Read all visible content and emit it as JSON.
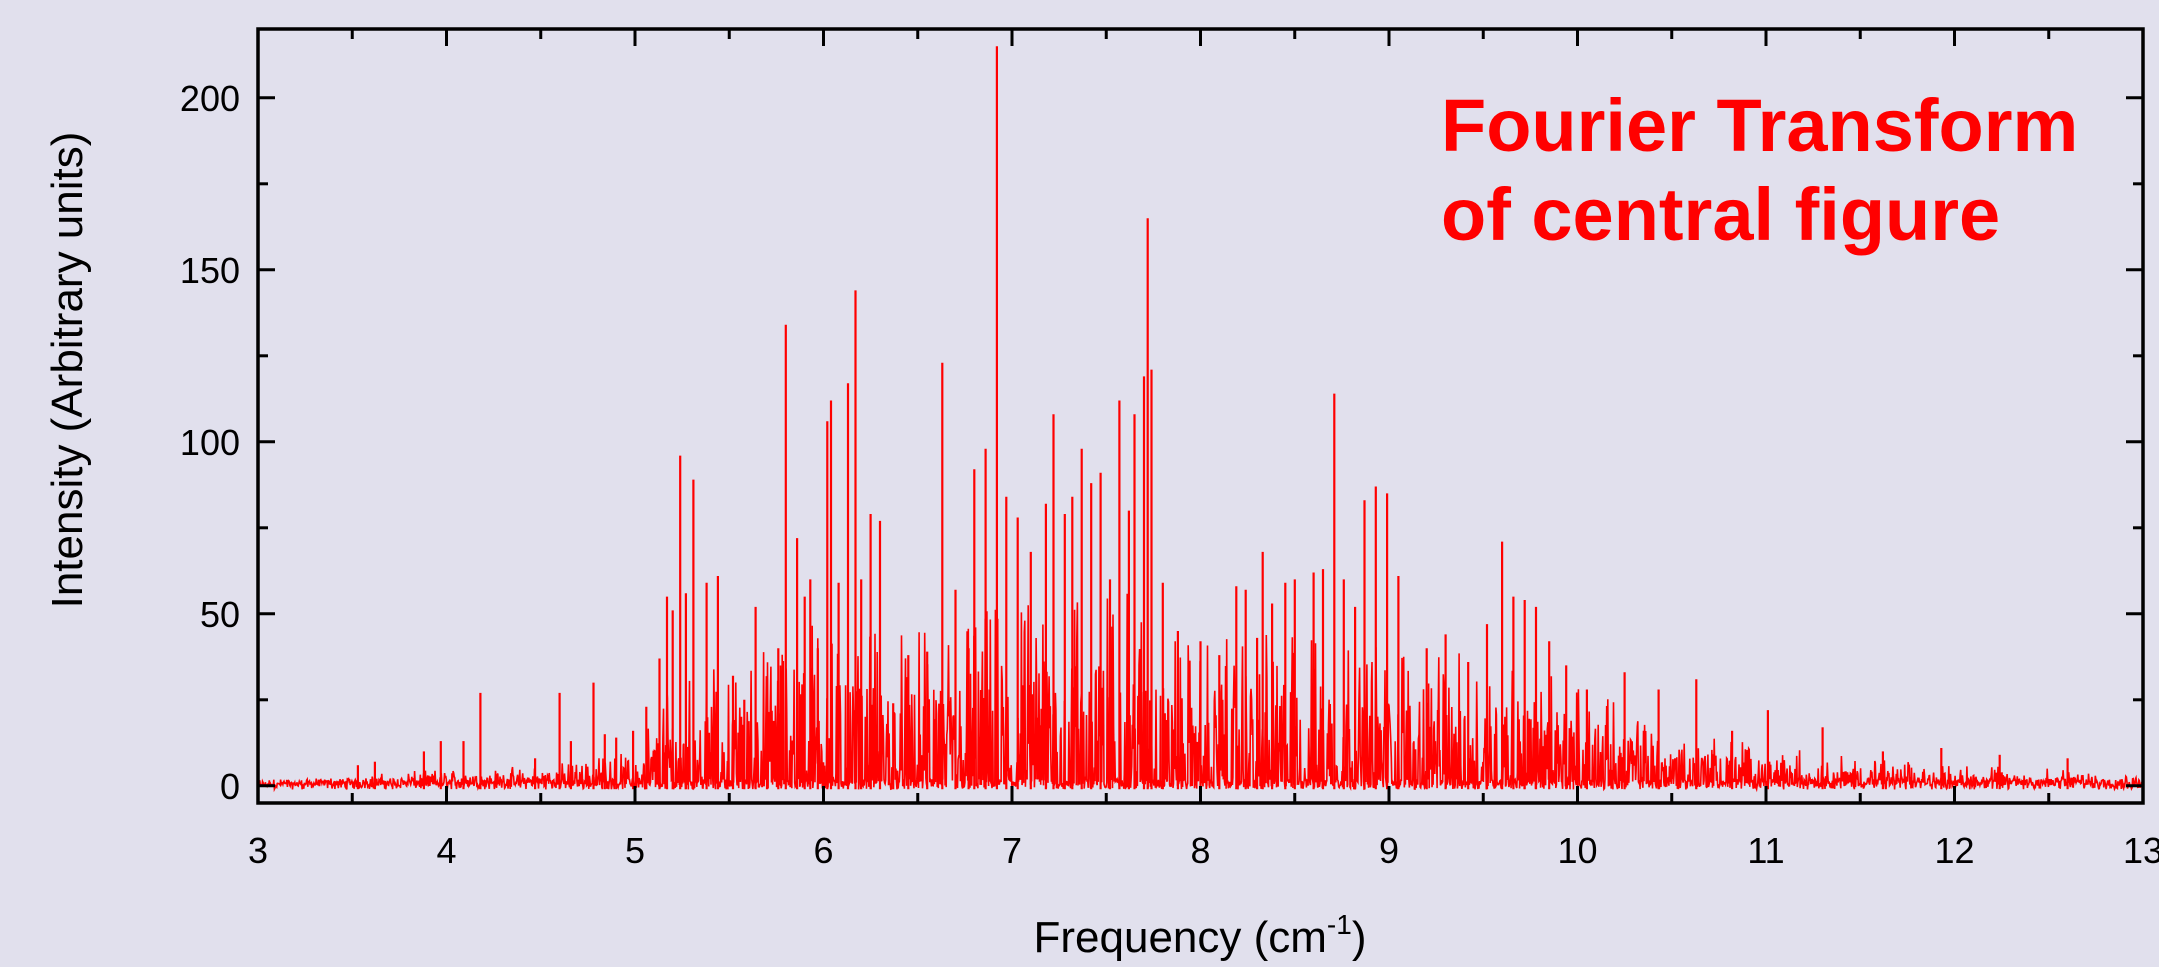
{
  "chart_data": {
    "type": "line",
    "title": "",
    "annotation": [
      "Fourier Transform",
      "of central figure"
    ],
    "xlabel": {
      "text": "Frequency (cm",
      "sup": "-1",
      "suffix": ")"
    },
    "ylabel": "Intensity (Arbitrary units)",
    "xlim": [
      3,
      13
    ],
    "ylim": [
      -5,
      220
    ],
    "xticks": [
      3,
      4,
      5,
      6,
      7,
      8,
      9,
      10,
      11,
      12,
      13
    ],
    "yticks": [
      0,
      50,
      100,
      150,
      200
    ],
    "grid": false,
    "legend": "none",
    "colors": {
      "series": "#ff0000",
      "annotation": "#ff0000",
      "axes": "#000000",
      "background": "#e1e0ed"
    },
    "series": [
      {
        "color": "#ff0000",
        "envelope": [
          [
            3.0,
            1
          ],
          [
            3.5,
            3
          ],
          [
            4.0,
            5
          ],
          [
            4.5,
            6
          ],
          [
            5.0,
            10
          ],
          [
            5.2,
            35
          ],
          [
            5.5,
            35
          ],
          [
            5.8,
            45
          ],
          [
            6.0,
            50
          ],
          [
            6.5,
            45
          ],
          [
            7.0,
            55
          ],
          [
            7.5,
            60
          ],
          [
            8.0,
            42
          ],
          [
            8.5,
            45
          ],
          [
            9.0,
            42
          ],
          [
            9.5,
            38
          ],
          [
            10.0,
            30
          ],
          [
            10.5,
            18
          ],
          [
            11.0,
            12
          ],
          [
            11.5,
            8
          ],
          [
            12.0,
            6
          ],
          [
            12.5,
            5
          ],
          [
            13.0,
            3
          ]
        ],
        "peaks": [
          [
            3.53,
            6
          ],
          [
            3.62,
            7
          ],
          [
            3.88,
            10
          ],
          [
            3.97,
            13
          ],
          [
            4.09,
            13
          ],
          [
            4.18,
            27
          ],
          [
            4.47,
            8
          ],
          [
            4.6,
            27
          ],
          [
            4.66,
            13
          ],
          [
            4.78,
            30
          ],
          [
            4.84,
            15
          ],
          [
            4.9,
            14
          ],
          [
            4.99,
            16
          ],
          [
            5.06,
            23
          ],
          [
            5.13,
            37
          ],
          [
            5.17,
            55
          ],
          [
            5.2,
            51
          ],
          [
            5.24,
            96
          ],
          [
            5.27,
            56
          ],
          [
            5.31,
            89
          ],
          [
            5.38,
            59
          ],
          [
            5.44,
            61
          ],
          [
            5.52,
            32
          ],
          [
            5.58,
            25
          ],
          [
            5.64,
            52
          ],
          [
            5.7,
            31
          ],
          [
            5.76,
            40
          ],
          [
            5.8,
            134
          ],
          [
            5.86,
            72
          ],
          [
            5.9,
            55
          ],
          [
            5.93,
            60
          ],
          [
            5.97,
            40
          ],
          [
            6.02,
            106
          ],
          [
            6.04,
            112
          ],
          [
            6.08,
            59
          ],
          [
            6.13,
            117
          ],
          [
            6.17,
            144
          ],
          [
            6.2,
            60
          ],
          [
            6.25,
            79
          ],
          [
            6.3,
            77
          ],
          [
            6.37,
            24
          ],
          [
            6.45,
            38
          ],
          [
            6.55,
            39
          ],
          [
            6.63,
            123
          ],
          [
            6.7,
            57
          ],
          [
            6.77,
            40
          ],
          [
            6.8,
            92
          ],
          [
            6.86,
            98
          ],
          [
            6.92,
            215
          ],
          [
            6.97,
            84
          ],
          [
            7.03,
            78
          ],
          [
            7.1,
            68
          ],
          [
            7.18,
            82
          ],
          [
            7.22,
            108
          ],
          [
            7.28,
            79
          ],
          [
            7.32,
            84
          ],
          [
            7.37,
            98
          ],
          [
            7.42,
            88
          ],
          [
            7.47,
            91
          ],
          [
            7.52,
            60
          ],
          [
            7.57,
            112
          ],
          [
            7.62,
            80
          ],
          [
            7.65,
            108
          ],
          [
            7.7,
            119
          ],
          [
            7.72,
            165
          ],
          [
            7.74,
            121
          ],
          [
            7.8,
            59
          ],
          [
            7.88,
            45
          ],
          [
            8.0,
            42
          ],
          [
            8.1,
            38
          ],
          [
            8.19,
            58
          ],
          [
            8.24,
            57
          ],
          [
            8.3,
            43
          ],
          [
            8.33,
            68
          ],
          [
            8.38,
            53
          ],
          [
            8.45,
            59
          ],
          [
            8.5,
            60
          ],
          [
            8.6,
            62
          ],
          [
            8.65,
            63
          ],
          [
            8.71,
            114
          ],
          [
            8.76,
            60
          ],
          [
            8.82,
            52
          ],
          [
            8.87,
            83
          ],
          [
            8.93,
            87
          ],
          [
            8.99,
            85
          ],
          [
            9.05,
            61
          ],
          [
            9.2,
            40
          ],
          [
            9.3,
            44
          ],
          [
            9.42,
            36
          ],
          [
            9.52,
            47
          ],
          [
            9.6,
            71
          ],
          [
            9.66,
            55
          ],
          [
            9.72,
            54
          ],
          [
            9.78,
            52
          ],
          [
            9.85,
            42
          ],
          [
            9.94,
            35
          ],
          [
            10.05,
            28
          ],
          [
            10.25,
            33
          ],
          [
            10.43,
            28
          ],
          [
            10.63,
            31
          ],
          [
            10.82,
            16
          ],
          [
            11.01,
            22
          ],
          [
            11.3,
            17
          ],
          [
            11.62,
            10
          ],
          [
            11.93,
            11
          ],
          [
            12.24,
            9
          ],
          [
            12.6,
            8
          ]
        ]
      }
    ]
  }
}
